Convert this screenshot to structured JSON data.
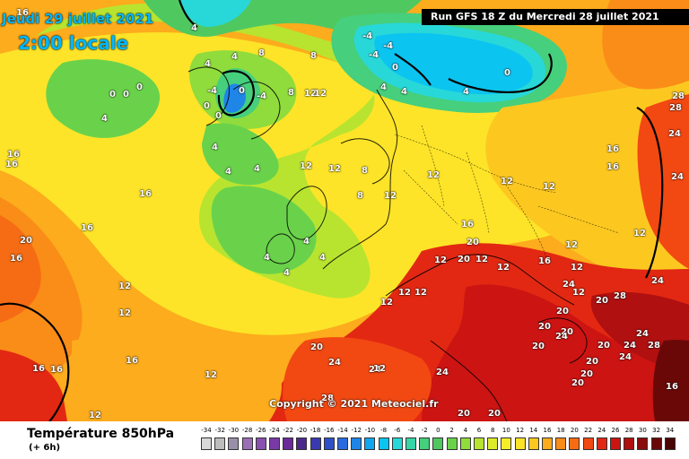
{
  "header": {
    "date": "Jeudi 29 juillet 2021",
    "local_time": "2:00 locale",
    "run": "Run GFS 18 Z du Mercredi 28 juillet 2021"
  },
  "copyright": "Copyright © 2021 Meteociel.fr",
  "footer": {
    "title": "Température 850hPa",
    "subtitle": "(+ 6h)"
  },
  "legend": {
    "ticks": [
      "-34",
      "-32",
      "-30",
      "-28",
      "-26",
      "-24",
      "-22",
      "-20",
      "-18",
      "-16",
      "-14",
      "-12",
      "-10",
      "-8",
      "-6",
      "-4",
      "-2",
      "0",
      "2",
      "4",
      "6",
      "8",
      "10",
      "12",
      "14",
      "16",
      "18",
      "20",
      "22",
      "24",
      "26",
      "28",
      "30",
      "32",
      "34"
    ],
    "colors": [
      "#d8d8d8",
      "#bdbdbd",
      "#9a8fa8",
      "#9b6fb6",
      "#8b4fb0",
      "#7a3aa6",
      "#6b2a9a",
      "#4a2b8c",
      "#3a3ab0",
      "#2d50c8",
      "#2a6ae0",
      "#1f86e8",
      "#13a6f0",
      "#0cc4f0",
      "#28d8d8",
      "#36d6a8",
      "#46cf7c",
      "#50c860",
      "#6ad24a",
      "#90dc3c",
      "#b8e430",
      "#dcec28",
      "#f4ee28",
      "#fde428",
      "#fcc820",
      "#fcac1c",
      "#fa8c18",
      "#f66c14",
      "#f24812",
      "#e22812",
      "#cc1412",
      "#b01010",
      "#8a0c0c",
      "#6a0808",
      "#4a0404"
    ]
  },
  "iso_labels": [
    {
      "t": "0"
    },
    {
      "t": "0"
    },
    {
      "t": "0"
    },
    {
      "t": "4"
    },
    {
      "t": "4"
    },
    {
      "t": "4"
    },
    {
      "t": "4"
    },
    {
      "t": "8"
    },
    {
      "t": "8"
    },
    {
      "t": "12"
    },
    {
      "t": "12"
    },
    {
      "t": "-4"
    },
    {
      "t": "-4"
    },
    {
      "t": "0"
    },
    {
      "t": "0"
    },
    {
      "t": "0"
    },
    {
      "t": "-4"
    },
    {
      "t": "-4"
    },
    {
      "t": "-4"
    },
    {
      "t": "0"
    },
    {
      "t": "0"
    },
    {
      "t": "4"
    },
    {
      "t": "4"
    },
    {
      "t": "4"
    },
    {
      "t": "8"
    },
    {
      "t": "12"
    },
    {
      "t": "12"
    },
    {
      "t": "12"
    },
    {
      "t": "12"
    },
    {
      "t": "12"
    },
    {
      "t": "16"
    },
    {
      "t": "16"
    },
    {
      "t": "16"
    },
    {
      "t": "16"
    },
    {
      "t": "16"
    },
    {
      "t": "16"
    },
    {
      "t": "12"
    },
    {
      "t": "12"
    },
    {
      "t": "12"
    },
    {
      "t": "20"
    },
    {
      "t": "20"
    },
    {
      "t": "20"
    },
    {
      "t": "20"
    },
    {
      "t": "20"
    },
    {
      "t": "20"
    },
    {
      "t": "24"
    },
    {
      "t": "24"
    },
    {
      "t": "24"
    },
    {
      "t": "24"
    },
    {
      "t": "28"
    },
    {
      "t": "28"
    },
    {
      "t": "28"
    },
    {
      "t": "24"
    },
    {
      "t": "20"
    },
    {
      "t": "20"
    },
    {
      "t": "16"
    },
    {
      "t": "16"
    },
    {
      "t": "12"
    },
    {
      "t": "12"
    },
    {
      "t": "16"
    },
    {
      "t": "20"
    },
    {
      "t": "12"
    },
    {
      "t": "4"
    },
    {
      "t": "4"
    },
    {
      "t": "4"
    },
    {
      "t": "12"
    },
    {
      "t": "12"
    },
    {
      "t": "8"
    },
    {
      "t": "12"
    },
    {
      "t": "16"
    },
    {
      "t": "24"
    },
    {
      "t": "28"
    },
    {
      "t": "28"
    },
    {
      "t": "16"
    },
    {
      "t": "12"
    },
    {
      "t": "12"
    },
    {
      "t": "20"
    },
    {
      "t": "24"
    },
    {
      "t": "20"
    },
    {
      "t": "16"
    },
    {
      "t": "12"
    },
    {
      "t": "4"
    },
    {
      "t": "4"
    },
    {
      "t": "4"
    },
    {
      "t": "4"
    },
    {
      "t": "8"
    },
    {
      "t": "20"
    },
    {
      "t": "24"
    },
    {
      "t": "24"
    },
    {
      "t": "24"
    },
    {
      "t": "20"
    },
    {
      "t": "20"
    },
    {
      "t": "16"
    },
    {
      "t": "24"
    },
    {
      "t": "20"
    },
    {
      "t": "12"
    },
    {
      "t": "12"
    },
    {
      "t": "16"
    },
    {
      "t": "12"
    },
    {
      "t": "12"
    }
  ]
}
